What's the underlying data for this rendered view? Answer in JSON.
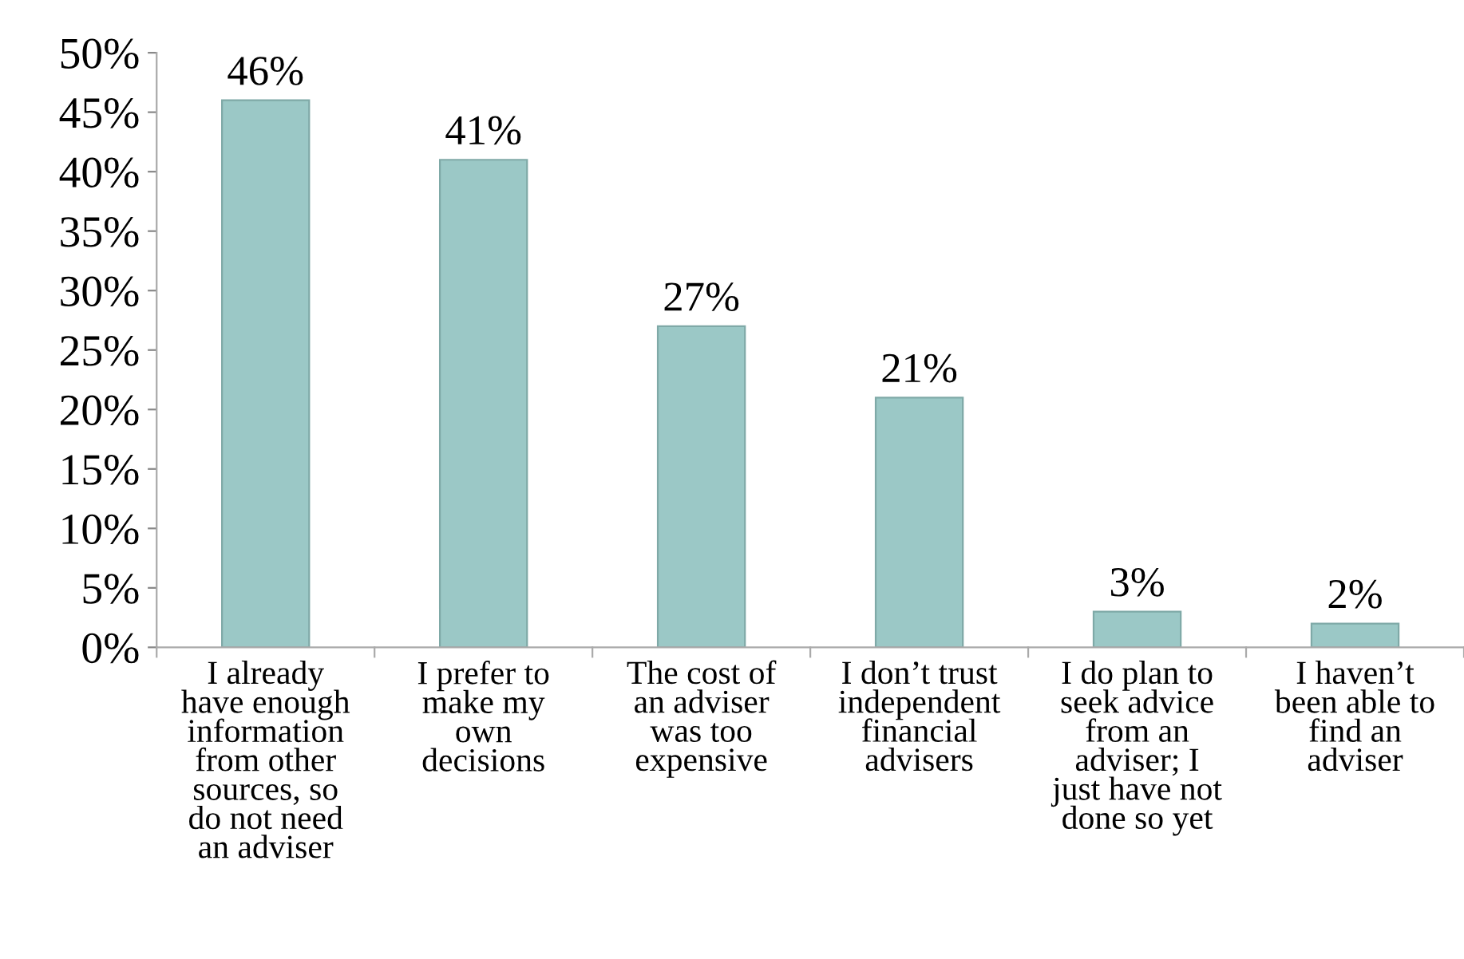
{
  "chart_data": {
    "type": "bar",
    "categories": [
      "I already\nhave enough\ninformation\nfrom other\nsources, so\ndo not need\nan adviser",
      "I prefer to\nmake my\nown\ndecisions",
      "The cost of\nan adviser\nwas too\nexpensive",
      "I don’t trust\nindependent\nfinancial\nadvisers",
      "I do plan to\nseek advice\nfrom an\nadviser; I\njust have not\ndone so yet",
      "I haven’t\nbeen able to\nfind an\nadviser"
    ],
    "values": [
      46,
      41,
      27,
      21,
      3,
      2
    ],
    "color": "#9bc8c6",
    "value_labels": [
      "46%",
      "41%",
      "27%",
      "21%",
      "3%",
      "2%"
    ],
    "ylim": [
      0,
      50
    ],
    "yticks": [
      {
        "value": 0,
        "label": "0%"
      },
      {
        "value": 5,
        "label": "5%"
      },
      {
        "value": 10,
        "label": "10%"
      },
      {
        "value": 15,
        "label": "15%"
      },
      {
        "value": 20,
        "label": "20%"
      },
      {
        "value": 25,
        "label": "25%"
      },
      {
        "value": 30,
        "label": "30%"
      },
      {
        "value": 35,
        "label": "35%"
      },
      {
        "value": 40,
        "label": "40%"
      },
      {
        "value": 45,
        "label": "45%"
      },
      {
        "value": 50,
        "label": "50%"
      }
    ],
    "grid": false,
    "legend": false
  }
}
